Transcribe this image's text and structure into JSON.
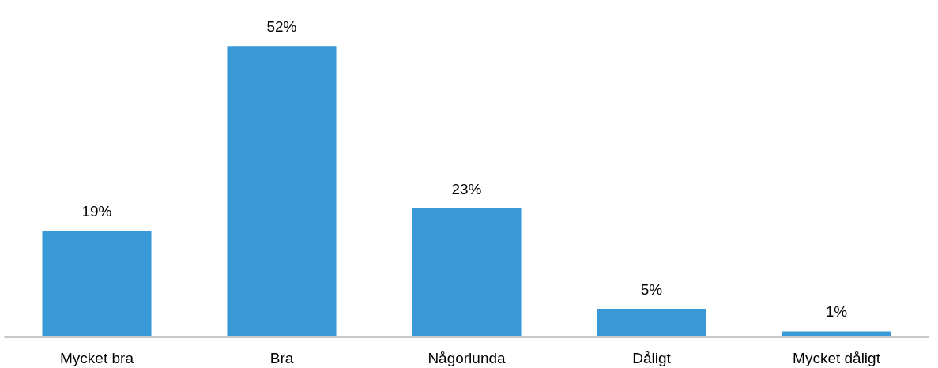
{
  "chart_data": {
    "type": "bar",
    "categories": [
      "Mycket bra",
      "Bra",
      "Någorlunda",
      "Dåligt",
      "Mycket dåligt"
    ],
    "values": [
      19,
      52,
      23,
      5,
      1
    ],
    "color": "#3899d6",
    "value_labels": [
      "19%",
      "52%",
      "23%",
      "5%",
      "1%"
    ],
    "grid": false
  }
}
